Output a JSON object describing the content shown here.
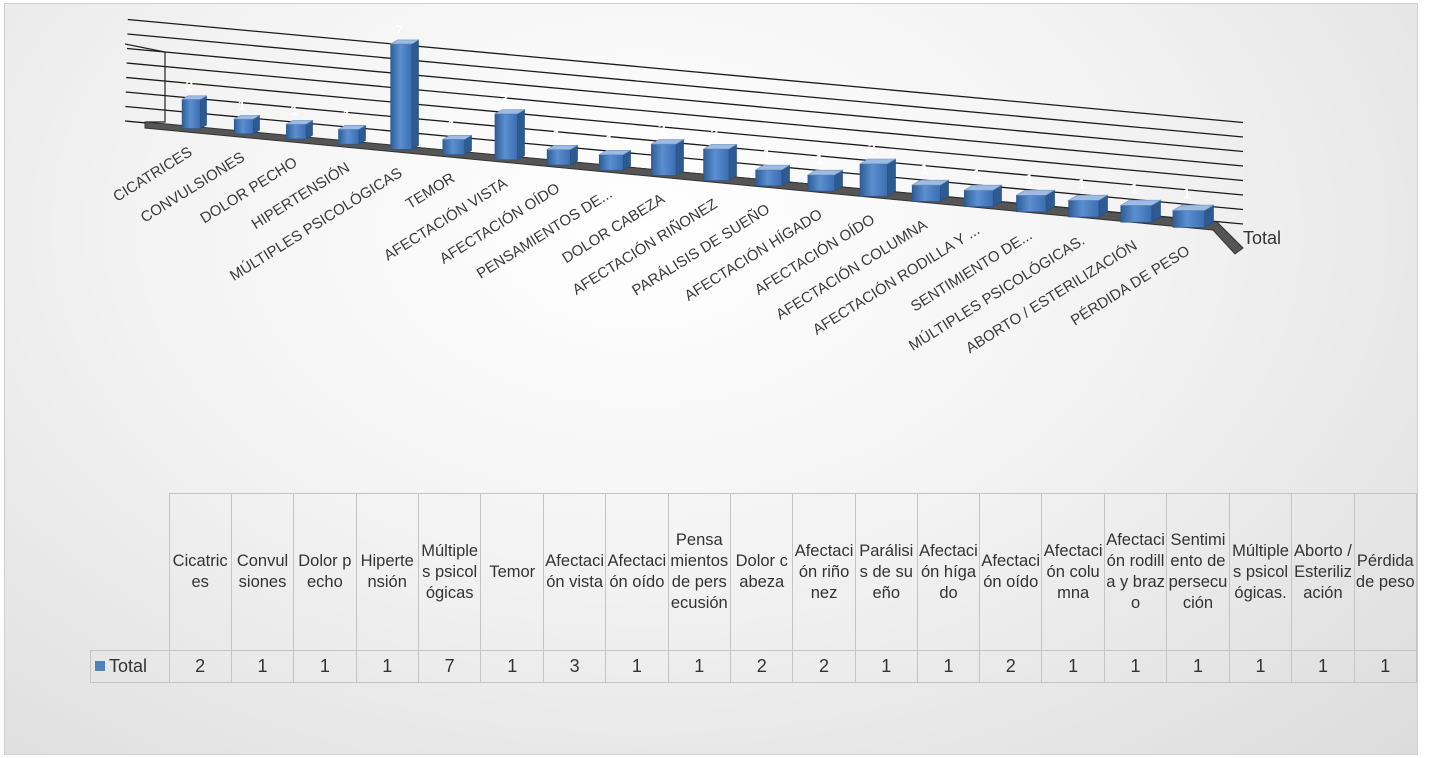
{
  "chart_data": {
    "type": "bar",
    "categories": [
      "CICATRICES",
      "CONVULSIONES",
      "DOLOR PECHO",
      "HIPERTENSIÓN",
      "MÚLTIPLES PSICOLÓGICAS",
      "TEMOR",
      "AFECTACIÓN VISTA",
      "AFECTACIÓN OÍDO",
      "PENSAMIENTOS DE...",
      "DOLOR CABEZA",
      "AFECTACIÓN RIÑONEZ",
      "PARÁLISIS DE SUEÑO",
      "AFECTACIÓN HÍGADO",
      "AFECTACIÓN OÍDO",
      "AFECTACIÓN COLUMNA",
      "AFECTACIÓN RODILLA Y ...",
      "SENTIMIENTO DE...",
      "MÚLTIPLES PSICOLÓGICAS.",
      "ABORTO / ESTERILIZACIÓN",
      "PÉRDIDA DE PESO"
    ],
    "table_categories": [
      "Cicatrices",
      "Convulsiones",
      "Dolor pecho",
      "Hipertensión",
      "Múltiples psicológicas",
      "Temor",
      "Afectación vista",
      "Afectación oído",
      "Pensamientos de persecusión",
      "Dolor cabeza",
      "Afectación riñonez",
      "Parálisis de sueño",
      "Afectación hígado",
      "Afectación oído",
      "Afectación columna",
      "Afectación rodilla y brazo",
      "Sentimiento de persecución",
      "Múltiples psicológicas.",
      "Aborto / Esterilización",
      "Pérdida de peso"
    ],
    "series": [
      {
        "name": "Total",
        "values": [
          2,
          1,
          1,
          1,
          7,
          1,
          3,
          1,
          1,
          2,
          2,
          1,
          1,
          2,
          1,
          1,
          1,
          1,
          1,
          1
        ]
      }
    ],
    "ylim": [
      0,
      7
    ],
    "grid": true,
    "style": "3d",
    "color": "#4f81bd",
    "legend": "data-table"
  }
}
